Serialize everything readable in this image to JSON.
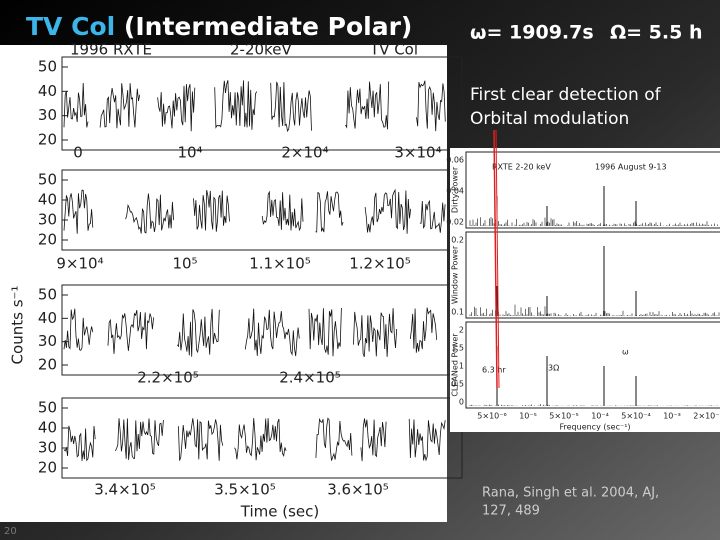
{
  "title": {
    "target": "TV Col",
    "class": "(Intermediate Polar)",
    "spin": "ω= 1909.7s",
    "orbit": "Ω= 5.5 h"
  },
  "note": [
    "First clear detection of",
    "Orbital modulation"
  ],
  "citation": [
    "Rana, Singh et al. 2004, AJ,",
    "127, 489"
  ],
  "slide_number": "20",
  "light_curve": {
    "header": [
      "1996 RXTE",
      "2-20keV",
      "TV Col"
    ],
    "y_label": "Counts s⁻¹",
    "x_label": "Time (sec)",
    "panels": [
      {
        "y_ticks": [
          "50",
          "40",
          "30",
          "20"
        ],
        "x_ticks": [
          "0",
          "10⁴",
          "2×10⁴",
          "3×10⁴"
        ]
      },
      {
        "y_ticks": [
          "50",
          "40",
          "30",
          "20"
        ],
        "x_ticks": [
          "9×10⁴",
          "10⁵",
          "1.1×10⁵",
          "1.2×10⁵"
        ]
      },
      {
        "y_ticks": [
          "50",
          "40",
          "30",
          "20"
        ],
        "x_ticks": [
          "2.2×10⁵",
          "2.4×10⁵"
        ]
      },
      {
        "y_ticks": [
          "50",
          "40",
          "30",
          "20"
        ],
        "x_ticks": [
          "3.4×10⁵",
          "3.5×10⁵",
          "3.6×10⁵"
        ]
      }
    ]
  },
  "power_spectrum": {
    "header": [
      "RXTE 2-20 keV",
      "1996 August 9-13"
    ],
    "x_label": "Frequency (sec⁻¹)",
    "x_ticks": [
      "5×10⁻⁶",
      "10⁻⁵",
      "5×10⁻⁵",
      "10⁻⁴",
      "5×10⁻⁴",
      "10⁻³",
      "2×10⁻³"
    ],
    "panels": [
      {
        "y_label": "Dirty Power",
        "y_ticks": [
          "0.06",
          "0.04",
          "0.02"
        ]
      },
      {
        "y_label": "Window Power",
        "y_ticks": [
          "0.2",
          "0.1"
        ]
      },
      {
        "y_label": "CLEANed Power",
        "y_ticks": [
          "2",
          "1.5",
          "1",
          "0.5",
          "0"
        ]
      }
    ],
    "annotations": [
      "6.3 hr",
      "ω",
      "3Ω"
    ]
  }
}
